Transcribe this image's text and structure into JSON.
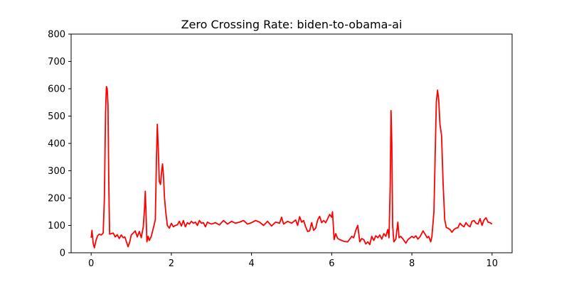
{
  "chart_data": {
    "type": "line",
    "title": "Zero Crossing Rate: biden-to-obama-ai",
    "xlabel": "",
    "ylabel": "",
    "xlim": [
      -0.5,
      10.5
    ],
    "ylim": [
      0,
      800
    ],
    "x_ticks": [
      0,
      2,
      4,
      6,
      8,
      10
    ],
    "y_ticks": [
      0,
      100,
      200,
      300,
      400,
      500,
      600,
      700,
      800
    ],
    "grid": false,
    "legend": "none",
    "series": [
      {
        "color": "#ff0000",
        "points": [
          [
            0.0,
            55
          ],
          [
            0.02,
            82
          ],
          [
            0.05,
            35
          ],
          [
            0.08,
            18
          ],
          [
            0.12,
            45
          ],
          [
            0.16,
            62
          ],
          [
            0.2,
            68
          ],
          [
            0.25,
            65
          ],
          [
            0.3,
            72
          ],
          [
            0.33,
            200
          ],
          [
            0.36,
            520
          ],
          [
            0.38,
            608
          ],
          [
            0.4,
            600
          ],
          [
            0.42,
            540
          ],
          [
            0.44,
            250
          ],
          [
            0.46,
            68
          ],
          [
            0.5,
            70
          ],
          [
            0.55,
            72
          ],
          [
            0.6,
            58
          ],
          [
            0.65,
            66
          ],
          [
            0.7,
            52
          ],
          [
            0.75,
            65
          ],
          [
            0.8,
            55
          ],
          [
            0.84,
            58
          ],
          [
            0.88,
            40
          ],
          [
            0.92,
            22
          ],
          [
            0.96,
            38
          ],
          [
            1.0,
            65
          ],
          [
            1.05,
            72
          ],
          [
            1.1,
            80
          ],
          [
            1.15,
            58
          ],
          [
            1.2,
            78
          ],
          [
            1.25,
            55
          ],
          [
            1.3,
            95
          ],
          [
            1.33,
            160
          ],
          [
            1.35,
            225
          ],
          [
            1.37,
            140
          ],
          [
            1.39,
            40
          ],
          [
            1.42,
            60
          ],
          [
            1.45,
            45
          ],
          [
            1.5,
            60
          ],
          [
            1.55,
            90
          ],
          [
            1.6,
            120
          ],
          [
            1.63,
            350
          ],
          [
            1.65,
            470
          ],
          [
            1.67,
            400
          ],
          [
            1.7,
            260
          ],
          [
            1.73,
            250
          ],
          [
            1.76,
            300
          ],
          [
            1.78,
            325
          ],
          [
            1.8,
            290
          ],
          [
            1.83,
            200
          ],
          [
            1.86,
            150
          ],
          [
            1.9,
            100
          ],
          [
            1.95,
            90
          ],
          [
            2.0,
            108
          ],
          [
            2.05,
            95
          ],
          [
            2.1,
            100
          ],
          [
            2.15,
            102
          ],
          [
            2.2,
            115
          ],
          [
            2.25,
            98
          ],
          [
            2.3,
            118
          ],
          [
            2.35,
            95
          ],
          [
            2.4,
            110
          ],
          [
            2.45,
            105
          ],
          [
            2.5,
            115
          ],
          [
            2.55,
            108
          ],
          [
            2.6,
            112
          ],
          [
            2.65,
            100
          ],
          [
            2.7,
            118
          ],
          [
            2.75,
            108
          ],
          [
            2.8,
            110
          ],
          [
            2.85,
            95
          ],
          [
            2.9,
            112
          ],
          [
            2.95,
            108
          ],
          [
            3.0,
            105
          ],
          [
            3.1,
            110
          ],
          [
            3.2,
            102
          ],
          [
            3.3,
            118
          ],
          [
            3.4,
            105
          ],
          [
            3.5,
            115
          ],
          [
            3.6,
            108
          ],
          [
            3.7,
            112
          ],
          [
            3.8,
            118
          ],
          [
            3.9,
            105
          ],
          [
            4.0,
            110
          ],
          [
            4.1,
            118
          ],
          [
            4.2,
            112
          ],
          [
            4.3,
            100
          ],
          [
            4.4,
            115
          ],
          [
            4.5,
            98
          ],
          [
            4.6,
            112
          ],
          [
            4.7,
            108
          ],
          [
            4.75,
            130
          ],
          [
            4.8,
            105
          ],
          [
            4.9,
            115
          ],
          [
            5.0,
            108
          ],
          [
            5.1,
            120
          ],
          [
            5.15,
            100
          ],
          [
            5.2,
            132
          ],
          [
            5.25,
            112
          ],
          [
            5.3,
            118
          ],
          [
            5.35,
            95
          ],
          [
            5.4,
            78
          ],
          [
            5.45,
            80
          ],
          [
            5.5,
            110
          ],
          [
            5.55,
            82
          ],
          [
            5.6,
            90
          ],
          [
            5.65,
            120
          ],
          [
            5.7,
            133
          ],
          [
            5.75,
            110
          ],
          [
            5.8,
            118
          ],
          [
            5.85,
            110
          ],
          [
            5.9,
            125
          ],
          [
            5.95,
            140
          ],
          [
            6.0,
            130
          ],
          [
            6.02,
            150
          ],
          [
            6.04,
            100
          ],
          [
            6.06,
            48
          ],
          [
            6.1,
            70
          ],
          [
            6.15,
            52
          ],
          [
            6.2,
            48
          ],
          [
            6.3,
            42
          ],
          [
            6.4,
            40
          ],
          [
            6.5,
            60
          ],
          [
            6.55,
            55
          ],
          [
            6.6,
            82
          ],
          [
            6.65,
            100
          ],
          [
            6.7,
            40
          ],
          [
            6.75,
            52
          ],
          [
            6.8,
            48
          ],
          [
            6.85,
            32
          ],
          [
            6.9,
            40
          ],
          [
            6.95,
            30
          ],
          [
            7.0,
            60
          ],
          [
            7.05,
            45
          ],
          [
            7.1,
            62
          ],
          [
            7.15,
            55
          ],
          [
            7.2,
            65
          ],
          [
            7.25,
            50
          ],
          [
            7.3,
            70
          ],
          [
            7.35,
            60
          ],
          [
            7.4,
            85
          ],
          [
            7.43,
            55
          ],
          [
            7.46,
            250
          ],
          [
            7.48,
            520
          ],
          [
            7.5,
            400
          ],
          [
            7.52,
            100
          ],
          [
            7.55,
            40
          ],
          [
            7.6,
            50
          ],
          [
            7.65,
            112
          ],
          [
            7.68,
            55
          ],
          [
            7.72,
            60
          ],
          [
            7.78,
            50
          ],
          [
            7.85,
            35
          ],
          [
            7.9,
            48
          ],
          [
            8.0,
            60
          ],
          [
            8.05,
            55
          ],
          [
            8.1,
            62
          ],
          [
            8.15,
            50
          ],
          [
            8.2,
            58
          ],
          [
            8.28,
            80
          ],
          [
            8.33,
            68
          ],
          [
            8.38,
            55
          ],
          [
            8.42,
            60
          ],
          [
            8.47,
            40
          ],
          [
            8.5,
            60
          ],
          [
            8.55,
            150
          ],
          [
            8.58,
            350
          ],
          [
            8.61,
            550
          ],
          [
            8.64,
            595
          ],
          [
            8.67,
            560
          ],
          [
            8.7,
            470
          ],
          [
            8.74,
            430
          ],
          [
            8.78,
            250
          ],
          [
            8.82,
            120
          ],
          [
            8.86,
            92
          ],
          [
            8.9,
            90
          ],
          [
            8.95,
            85
          ],
          [
            9.0,
            75
          ],
          [
            9.05,
            85
          ],
          [
            9.1,
            90
          ],
          [
            9.15,
            92
          ],
          [
            9.2,
            108
          ],
          [
            9.25,
            100
          ],
          [
            9.3,
            95
          ],
          [
            9.35,
            110
          ],
          [
            9.4,
            100
          ],
          [
            9.45,
            95
          ],
          [
            9.5,
            115
          ],
          [
            9.55,
            118
          ],
          [
            9.6,
            108
          ],
          [
            9.65,
            105
          ],
          [
            9.7,
            125
          ],
          [
            9.75,
            100
          ],
          [
            9.8,
            120
          ],
          [
            9.85,
            128
          ],
          [
            9.9,
            112
          ],
          [
            9.95,
            110
          ],
          [
            10.0,
            105
          ]
        ]
      }
    ]
  }
}
